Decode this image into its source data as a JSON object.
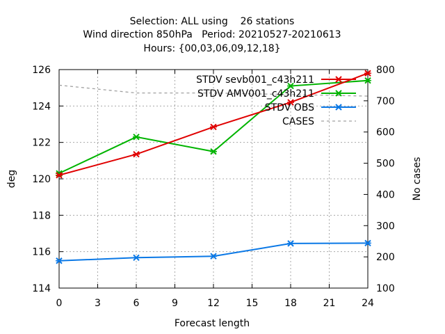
{
  "chart_data": {
    "type": "line",
    "title_lines": [
      "Selection: ALL using    26 stations",
      "Wind direction 850hPa   Period: 20210527-20210613",
      "Hours: {00,03,06,09,12,18}"
    ],
    "xlabel": "Forecast length",
    "ylabel": "deg",
    "y2label": "No cases",
    "xlim": [
      0,
      24
    ],
    "ylim": [
      114,
      126
    ],
    "y2lim": [
      100,
      800
    ],
    "xticks": [
      0,
      3,
      6,
      9,
      12,
      15,
      18,
      21,
      24
    ],
    "yticks": [
      114,
      116,
      118,
      120,
      122,
      124,
      126
    ],
    "y2ticks": [
      100,
      200,
      300,
      400,
      500,
      600,
      700,
      800
    ],
    "grid": true,
    "legend_position": "top-right",
    "series": [
      {
        "name": "STDV sevb001_c43h211",
        "color": "#e00000",
        "axis": "y",
        "marker": "x",
        "x": [
          0,
          6,
          12,
          18,
          24
        ],
        "values": [
          120.2,
          121.35,
          122.85,
          124.2,
          125.8
        ]
      },
      {
        "name": "STDV AMV001_c43h211",
        "color": "#00b400",
        "axis": "y",
        "marker": "x",
        "x": [
          0,
          6,
          12,
          18,
          24
        ],
        "values": [
          120.3,
          122.3,
          121.5,
          125.1,
          125.4
        ]
      },
      {
        "name": "STDV OBS",
        "color": "#0a78e6",
        "axis": "y",
        "marker": "x",
        "x": [
          0,
          6,
          12,
          18,
          24
        ],
        "values": [
          115.5,
          115.67,
          115.75,
          116.45,
          116.47
        ]
      },
      {
        "name": "CASES",
        "color": "#a0a0a0",
        "axis": "y2",
        "marker": "none",
        "dash": true,
        "x": [
          0,
          6,
          12,
          18,
          24
        ],
        "values": [
          750,
          725,
          725,
          720,
          715
        ]
      }
    ]
  }
}
